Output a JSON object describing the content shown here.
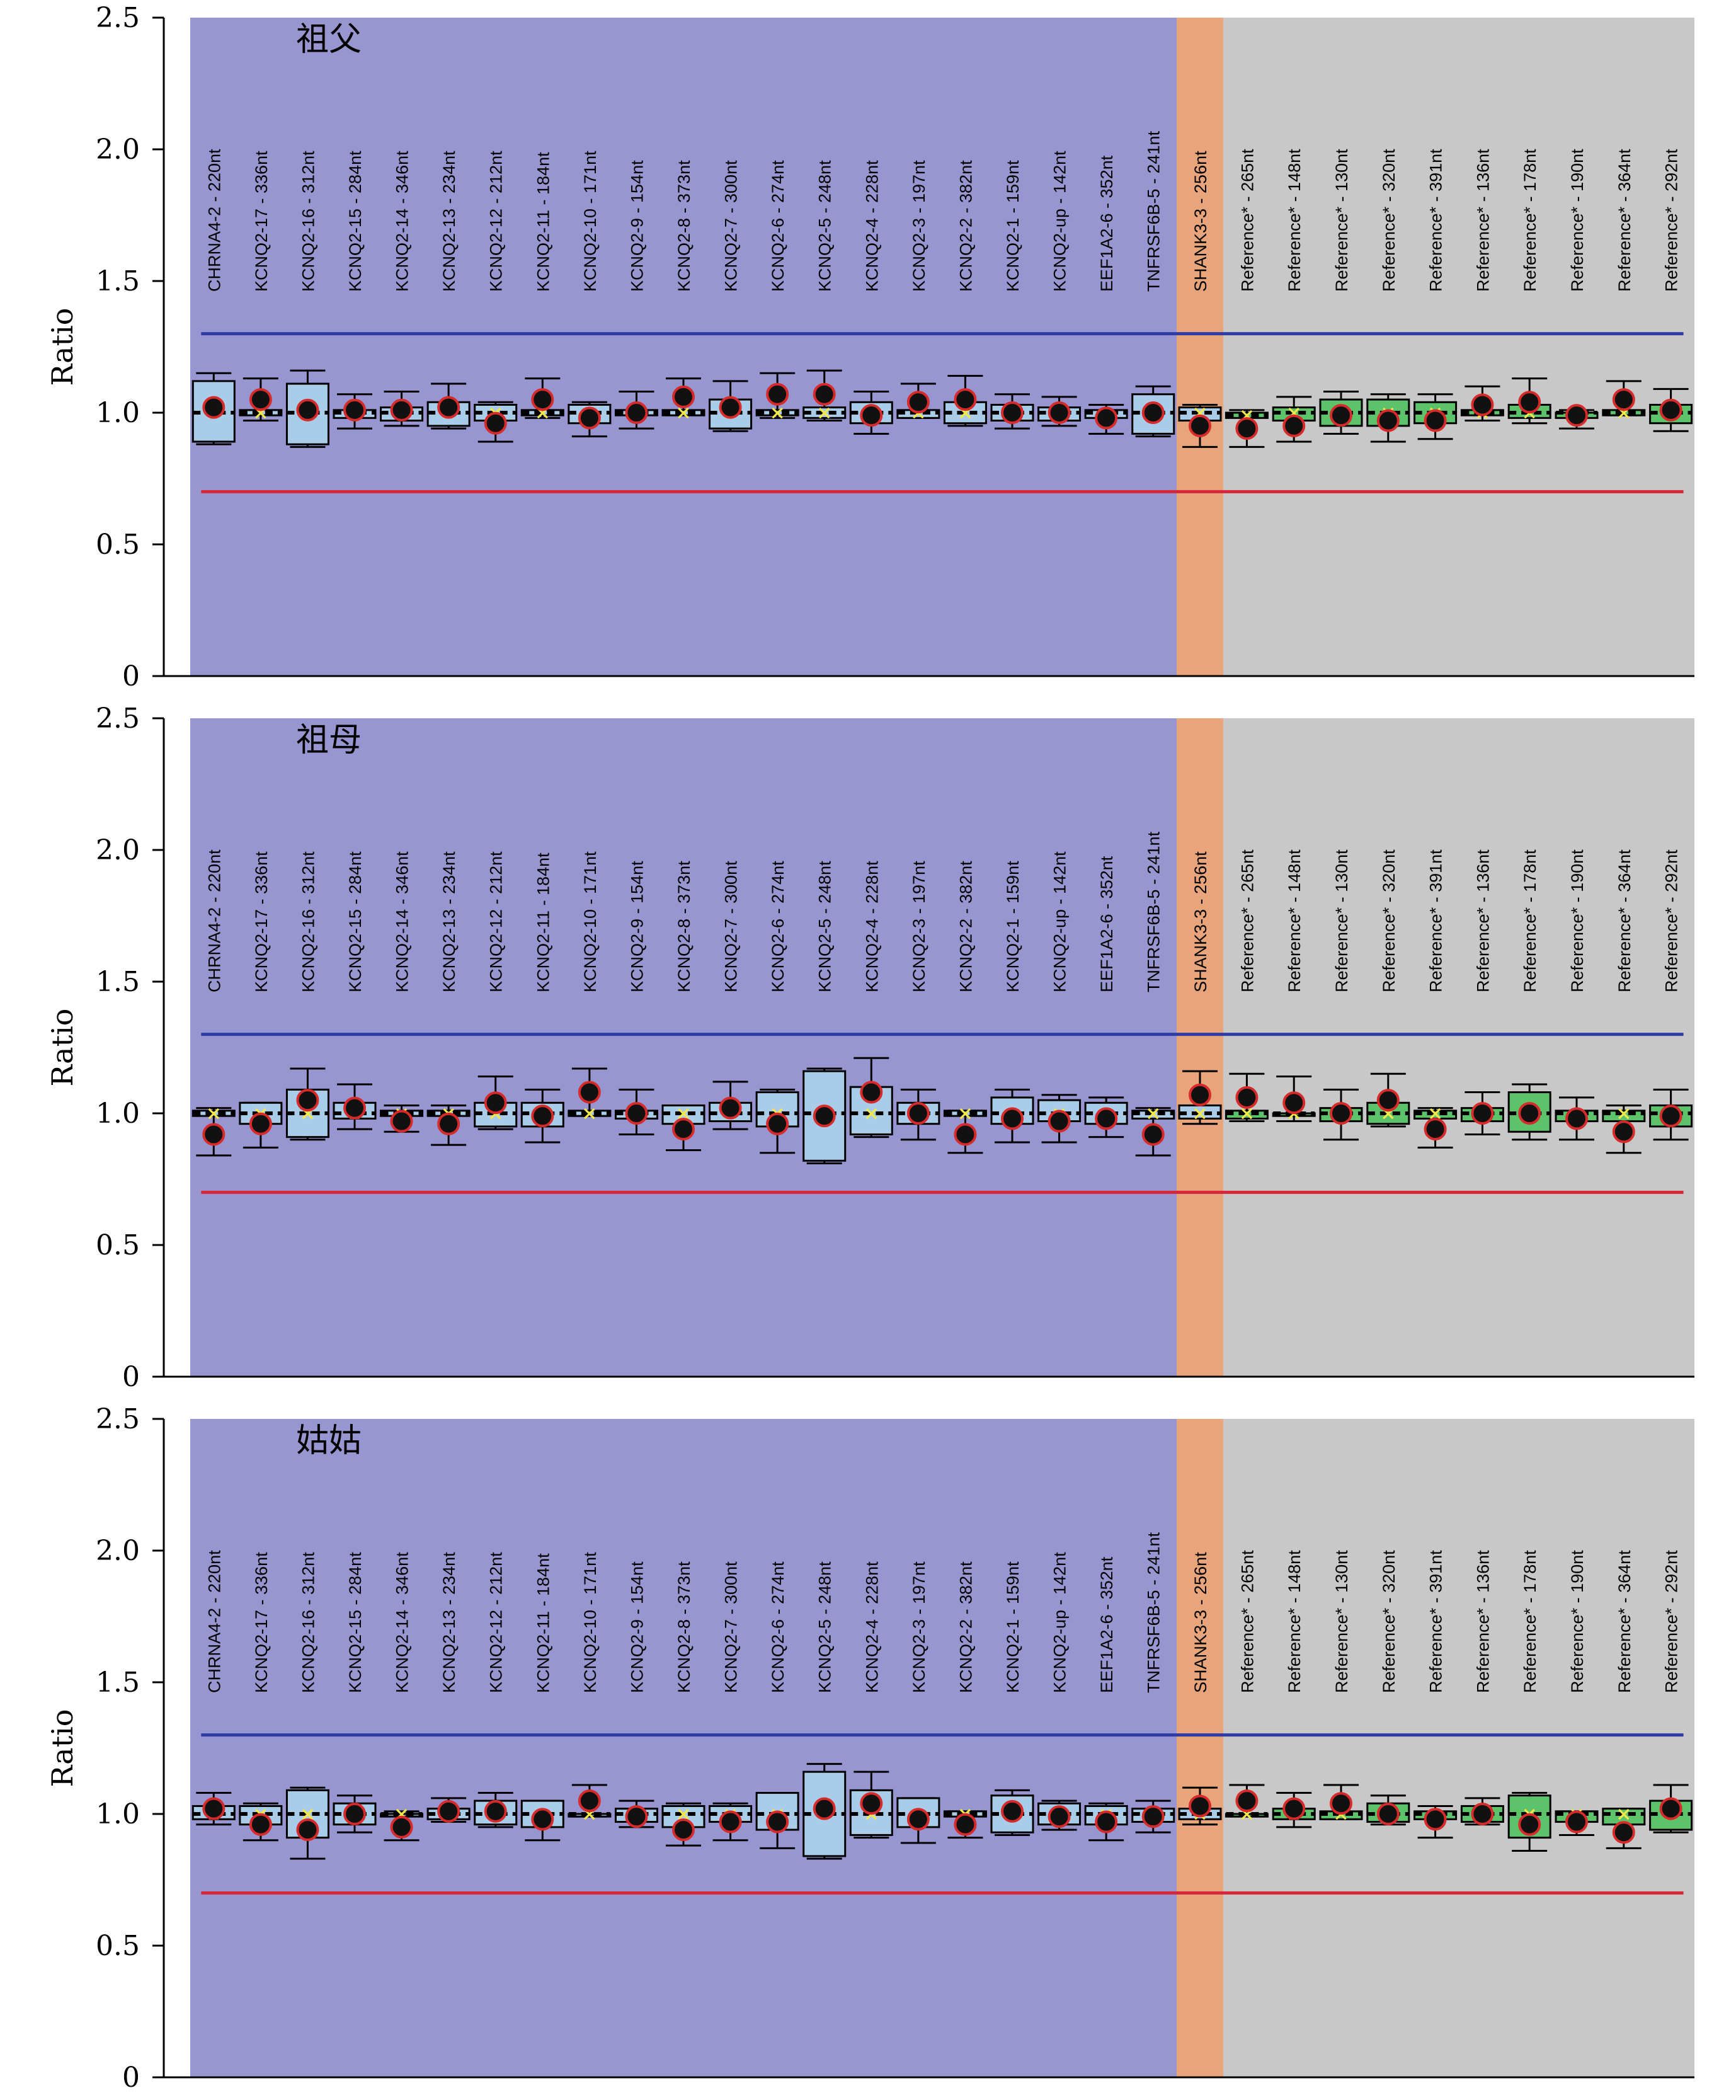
{
  "chart_data": [
    {
      "type": "box",
      "title": "祖父",
      "ylabel": "Ratio",
      "ylim": [
        0,
        2.5
      ],
      "yticks": [
        "0",
        "0.5",
        "1.0",
        "1.5",
        "2.0",
        "2.5"
      ],
      "upper_threshold": 1.3,
      "lower_threshold": 0.7,
      "categories": [
        "CHRNA4-2 - 220nt",
        "KCNQ2-17 - 336nt",
        "KCNQ2-16 - 312nt",
        "KCNQ2-15 - 284nt",
        "KCNQ2-14 - 346nt",
        "KCNQ2-13 - 234nt",
        "KCNQ2-12 - 212nt",
        "KCNQ2-11 - 184nt",
        "KCNQ2-10 - 171nt",
        "KCNQ2-9 - 154nt",
        "KCNQ2-8 - 373nt",
        "KCNQ2-7 - 300nt",
        "KCNQ2-6 - 274nt",
        "KCNQ2-5 - 248nt",
        "KCNQ2-4 - 228nt",
        "KCNQ2-3 - 197nt",
        "KCNQ2-2 - 382nt",
        "KCNQ2-1 - 159nt",
        "KCNQ2-up - 142nt",
        "EEF1A2-6 - 352nt",
        "TNFRSF6B-5 - 241nt",
        "SHANK3-3 - 256nt",
        "Reference* - 265nt",
        "Reference* - 148nt",
        "Reference* - 130nt",
        "Reference* - 320nt",
        "Reference* - 391nt",
        "Reference* - 136nt",
        "Reference* - 178nt",
        "Reference* - 190nt",
        "Reference* - 364nt",
        "Reference* - 292nt"
      ],
      "groups": [
        "test",
        "test",
        "test",
        "test",
        "test",
        "test",
        "test",
        "test",
        "test",
        "test",
        "test",
        "test",
        "test",
        "test",
        "test",
        "test",
        "test",
        "test",
        "test",
        "test",
        "test",
        "control",
        "reference",
        "reference",
        "reference",
        "reference",
        "reference",
        "reference",
        "reference",
        "reference",
        "reference",
        "reference"
      ],
      "ratio": [
        1.02,
        1.05,
        1.01,
        1.01,
        1.01,
        1.02,
        0.96,
        1.05,
        0.98,
        1.0,
        1.06,
        1.02,
        1.07,
        1.07,
        0.99,
        1.04,
        1.05,
        1.0,
        1.0,
        0.98,
        1.0,
        0.95,
        0.94,
        0.95,
        0.99,
        0.97,
        0.97,
        1.03,
        1.04,
        0.99,
        1.05,
        1.01
      ],
      "box_low": [
        0.89,
        0.99,
        0.88,
        0.98,
        0.97,
        0.95,
        0.97,
        0.99,
        0.96,
        0.99,
        0.99,
        0.94,
        0.99,
        0.98,
        0.96,
        0.98,
        0.96,
        0.97,
        0.97,
        0.98,
        0.92,
        0.97,
        0.98,
        0.97,
        0.95,
        0.95,
        0.96,
        0.99,
        0.98,
        0.98,
        0.99,
        0.96
      ],
      "box_high": [
        1.12,
        1.01,
        1.11,
        1.01,
        1.02,
        1.04,
        1.03,
        1.01,
        1.03,
        1.01,
        1.01,
        1.05,
        1.01,
        1.02,
        1.04,
        1.01,
        1.04,
        1.03,
        1.02,
        1.01,
        1.07,
        1.02,
        1.0,
        1.02,
        1.05,
        1.05,
        1.04,
        1.01,
        1.03,
        1.0,
        1.01,
        1.03
      ],
      "whisker_low": [
        0.88,
        0.97,
        0.87,
        0.94,
        0.95,
        0.94,
        0.89,
        0.98,
        0.91,
        0.94,
        0.99,
        0.93,
        0.98,
        0.97,
        0.92,
        0.98,
        0.95,
        0.94,
        0.95,
        0.92,
        0.91,
        0.87,
        0.87,
        0.89,
        0.92,
        0.89,
        0.9,
        0.97,
        0.96,
        0.94,
        0.99,
        0.93
      ],
      "whisker_high": [
        1.15,
        1.13,
        1.16,
        1.07,
        1.08,
        1.11,
        1.04,
        1.13,
        1.04,
        1.08,
        1.13,
        1.12,
        1.15,
        1.16,
        1.08,
        1.11,
        1.14,
        1.07,
        1.06,
        1.03,
        1.1,
        1.03,
        1.01,
        1.06,
        1.08,
        1.07,
        1.07,
        1.1,
        1.13,
        1.01,
        1.12,
        1.09
      ],
      "mean": [
        1.0,
        1.0,
        1.0,
        1.0,
        1.0,
        1.0,
        1.0,
        1.0,
        1.0,
        1.0,
        1.0,
        1.0,
        1.0,
        1.0,
        1.0,
        1.0,
        1.0,
        1.0,
        1.0,
        1.0,
        1.0,
        1.0,
        0.99,
        1.0,
        1.0,
        1.0,
        1.0,
        1.0,
        1.0,
        1.0,
        1.0,
        1.0
      ]
    },
    {
      "type": "box",
      "title": "祖母",
      "ylabel": "Ratio",
      "ylim": [
        0,
        2.5
      ],
      "yticks": [
        "0",
        "0.5",
        "1.0",
        "1.5",
        "2.0",
        "2.5"
      ],
      "upper_threshold": 1.3,
      "lower_threshold": 0.7,
      "categories": [
        "CHRNA4-2 - 220nt",
        "KCNQ2-17 - 336nt",
        "KCNQ2-16 - 312nt",
        "KCNQ2-15 - 284nt",
        "KCNQ2-14 - 346nt",
        "KCNQ2-13 - 234nt",
        "KCNQ2-12 - 212nt",
        "KCNQ2-11 - 184nt",
        "KCNQ2-10 - 171nt",
        "KCNQ2-9 - 154nt",
        "KCNQ2-8 - 373nt",
        "KCNQ2-7 - 300nt",
        "KCNQ2-6 - 274nt",
        "KCNQ2-5 - 248nt",
        "KCNQ2-4 - 228nt",
        "KCNQ2-3 - 197nt",
        "KCNQ2-2 - 382nt",
        "KCNQ2-1 - 159nt",
        "KCNQ2-up - 142nt",
        "EEF1A2-6 - 352nt",
        "TNFRSF6B-5 - 241nt",
        "SHANK3-3 - 256nt",
        "Reference* - 265nt",
        "Reference* - 148nt",
        "Reference* - 130nt",
        "Reference* - 320nt",
        "Reference* - 391nt",
        "Reference* - 136nt",
        "Reference* - 178nt",
        "Reference* - 190nt",
        "Reference* - 364nt",
        "Reference* - 292nt"
      ],
      "groups": [
        "test",
        "test",
        "test",
        "test",
        "test",
        "test",
        "test",
        "test",
        "test",
        "test",
        "test",
        "test",
        "test",
        "test",
        "test",
        "test",
        "test",
        "test",
        "test",
        "test",
        "test",
        "control",
        "reference",
        "reference",
        "reference",
        "reference",
        "reference",
        "reference",
        "reference",
        "reference",
        "reference",
        "reference"
      ],
      "ratio": [
        0.92,
        0.96,
        1.05,
        1.02,
        0.97,
        0.96,
        1.04,
        0.99,
        1.08,
        1.0,
        0.94,
        1.02,
        0.96,
        0.99,
        1.08,
        1.0,
        0.92,
        0.98,
        0.97,
        0.98,
        0.92,
        1.07,
        1.06,
        1.04,
        1.0,
        1.05,
        0.94,
        1.0,
        1.0,
        0.98,
        0.93,
        0.99
      ],
      "box_low": [
        0.99,
        0.96,
        0.91,
        0.98,
        0.99,
        0.99,
        0.95,
        0.95,
        0.99,
        0.98,
        0.96,
        0.97,
        0.95,
        0.82,
        0.92,
        0.96,
        0.99,
        0.96,
        0.97,
        0.96,
        0.98,
        0.98,
        0.98,
        0.99,
        0.97,
        0.96,
        0.98,
        0.97,
        0.93,
        0.97,
        0.97,
        0.95
      ],
      "box_high": [
        1.01,
        1.04,
        1.09,
        1.04,
        1.01,
        1.01,
        1.04,
        1.04,
        1.01,
        1.01,
        1.03,
        1.04,
        1.08,
        1.16,
        1.1,
        1.04,
        1.01,
        1.06,
        1.05,
        1.04,
        1.01,
        1.03,
        1.01,
        1.0,
        1.02,
        1.04,
        1.01,
        1.02,
        1.08,
        1.01,
        1.01,
        1.03
      ],
      "whisker_low": [
        0.84,
        0.87,
        0.9,
        0.94,
        0.93,
        0.88,
        0.94,
        0.89,
        0.99,
        0.92,
        0.86,
        0.94,
        0.85,
        0.81,
        0.91,
        0.9,
        0.85,
        0.89,
        0.89,
        0.91,
        0.84,
        0.96,
        0.97,
        0.97,
        0.9,
        0.95,
        0.87,
        0.92,
        0.9,
        0.9,
        0.85,
        0.9
      ],
      "whisker_high": [
        1.02,
        1.04,
        1.17,
        1.11,
        1.03,
        1.03,
        1.14,
        1.09,
        1.17,
        1.09,
        1.03,
        1.12,
        1.09,
        1.17,
        1.21,
        1.09,
        1.01,
        1.09,
        1.07,
        1.06,
        1.02,
        1.16,
        1.15,
        1.14,
        1.09,
        1.15,
        1.02,
        1.08,
        1.11,
        1.06,
        1.03,
        1.09
      ],
      "mean": [
        1.0,
        1.0,
        1.0,
        1.0,
        1.0,
        1.0,
        1.0,
        1.0,
        1.0,
        1.0,
        1.0,
        1.0,
        1.0,
        1.0,
        1.0,
        1.0,
        1.0,
        1.0,
        1.0,
        1.0,
        1.0,
        1.0,
        1.0,
        1.0,
        1.0,
        1.0,
        1.0,
        1.0,
        1.0,
        1.0,
        1.0,
        1.0
      ]
    },
    {
      "type": "box",
      "title": "姑姑",
      "ylabel": "Ratio",
      "ylim": [
        0,
        2.5
      ],
      "yticks": [
        "0",
        "0.5",
        "1.0",
        "1.5",
        "2.0",
        "2.5"
      ],
      "upper_threshold": 1.3,
      "lower_threshold": 0.7,
      "categories": [
        "CHRNA4-2 - 220nt",
        "KCNQ2-17 - 336nt",
        "KCNQ2-16 - 312nt",
        "KCNQ2-15 - 284nt",
        "KCNQ2-14 - 346nt",
        "KCNQ2-13 - 234nt",
        "KCNQ2-12 - 212nt",
        "KCNQ2-11 - 184nt",
        "KCNQ2-10 - 171nt",
        "KCNQ2-9 - 154nt",
        "KCNQ2-8 - 373nt",
        "KCNQ2-7 - 300nt",
        "KCNQ2-6 - 274nt",
        "KCNQ2-5 - 248nt",
        "KCNQ2-4 - 228nt",
        "KCNQ2-3 - 197nt",
        "KCNQ2-2 - 382nt",
        "KCNQ2-1 - 159nt",
        "KCNQ2-up - 142nt",
        "EEF1A2-6 - 352nt",
        "TNFRSF6B-5 - 241nt",
        "SHANK3-3 - 256nt",
        "Reference* - 265nt",
        "Reference* - 148nt",
        "Reference* - 130nt",
        "Reference* - 320nt",
        "Reference* - 391nt",
        "Reference* - 136nt",
        "Reference* - 178nt",
        "Reference* - 190nt",
        "Reference* - 364nt",
        "Reference* - 292nt"
      ],
      "groups": [
        "test",
        "test",
        "test",
        "test",
        "test",
        "test",
        "test",
        "test",
        "test",
        "test",
        "test",
        "test",
        "test",
        "test",
        "test",
        "test",
        "test",
        "test",
        "test",
        "test",
        "test",
        "control",
        "reference",
        "reference",
        "reference",
        "reference",
        "reference",
        "reference",
        "reference",
        "reference",
        "reference",
        "reference"
      ],
      "ratio": [
        1.02,
        0.96,
        0.94,
        1.0,
        0.95,
        1.01,
        1.01,
        0.98,
        1.05,
        0.99,
        0.94,
        0.97,
        0.97,
        1.02,
        1.04,
        0.98,
        0.96,
        1.01,
        0.99,
        0.97,
        0.99,
        1.03,
        1.05,
        1.02,
        1.04,
        1.0,
        0.98,
        1.0,
        0.96,
        0.97,
        0.93,
        1.02
      ],
      "box_low": [
        0.98,
        0.96,
        0.91,
        0.96,
        0.99,
        0.98,
        0.96,
        0.95,
        0.99,
        0.97,
        0.95,
        0.97,
        0.94,
        0.84,
        0.92,
        0.95,
        0.99,
        0.93,
        0.96,
        0.96,
        0.97,
        0.98,
        0.99,
        0.98,
        0.98,
        0.97,
        0.98,
        0.97,
        0.91,
        0.97,
        0.96,
        0.94
      ],
      "box_high": [
        1.03,
        1.03,
        1.09,
        1.04,
        1.0,
        1.02,
        1.05,
        1.05,
        1.0,
        1.02,
        1.03,
        1.03,
        1.08,
        1.16,
        1.09,
        1.06,
        1.01,
        1.07,
        1.04,
        1.03,
        1.02,
        1.02,
        1.0,
        1.02,
        1.01,
        1.04,
        1.01,
        1.03,
        1.07,
        1.01,
        1.02,
        1.05
      ],
      "whisker_low": [
        0.96,
        0.9,
        0.83,
        0.93,
        0.9,
        0.97,
        0.95,
        0.9,
        0.99,
        0.95,
        0.88,
        0.9,
        0.87,
        0.83,
        0.91,
        0.89,
        0.91,
        0.92,
        0.94,
        0.9,
        0.93,
        0.96,
        0.99,
        0.95,
        0.98,
        0.96,
        0.91,
        0.96,
        0.86,
        0.92,
        0.87,
        0.93
      ],
      "whisker_high": [
        1.08,
        1.04,
        1.1,
        1.07,
        1.01,
        1.06,
        1.08,
        1.05,
        1.11,
        1.05,
        1.04,
        1.04,
        1.08,
        1.19,
        1.16,
        1.06,
        1.01,
        1.09,
        1.05,
        1.04,
        1.05,
        1.1,
        1.11,
        1.08,
        1.11,
        1.07,
        1.03,
        1.06,
        1.08,
        1.01,
        1.02,
        1.11
      ],
      "mean": [
        1.0,
        1.0,
        1.0,
        1.0,
        1.0,
        1.0,
        1.0,
        1.0,
        1.0,
        1.0,
        1.0,
        1.0,
        1.0,
        1.0,
        1.0,
        1.0,
        1.0,
        1.0,
        1.0,
        1.0,
        1.0,
        1.0,
        1.0,
        1.0,
        1.0,
        1.0,
        1.0,
        1.0,
        1.0,
        1.0,
        1.0,
        1.0
      ]
    }
  ],
  "colors": {
    "test_region": "#9896d0",
    "control_region": "#e8a47a",
    "reference_region": "#c8c8c8",
    "test_box": "#a9cde8",
    "control_box": "#a9cde8",
    "reference_box": "#5dc36a",
    "upper_line": "#2f3ca8",
    "lower_line": "#d7253a",
    "ratio_dot": "#111111",
    "ratio_ring": "#d72b2b",
    "mean_marker": "#f3e84a"
  }
}
